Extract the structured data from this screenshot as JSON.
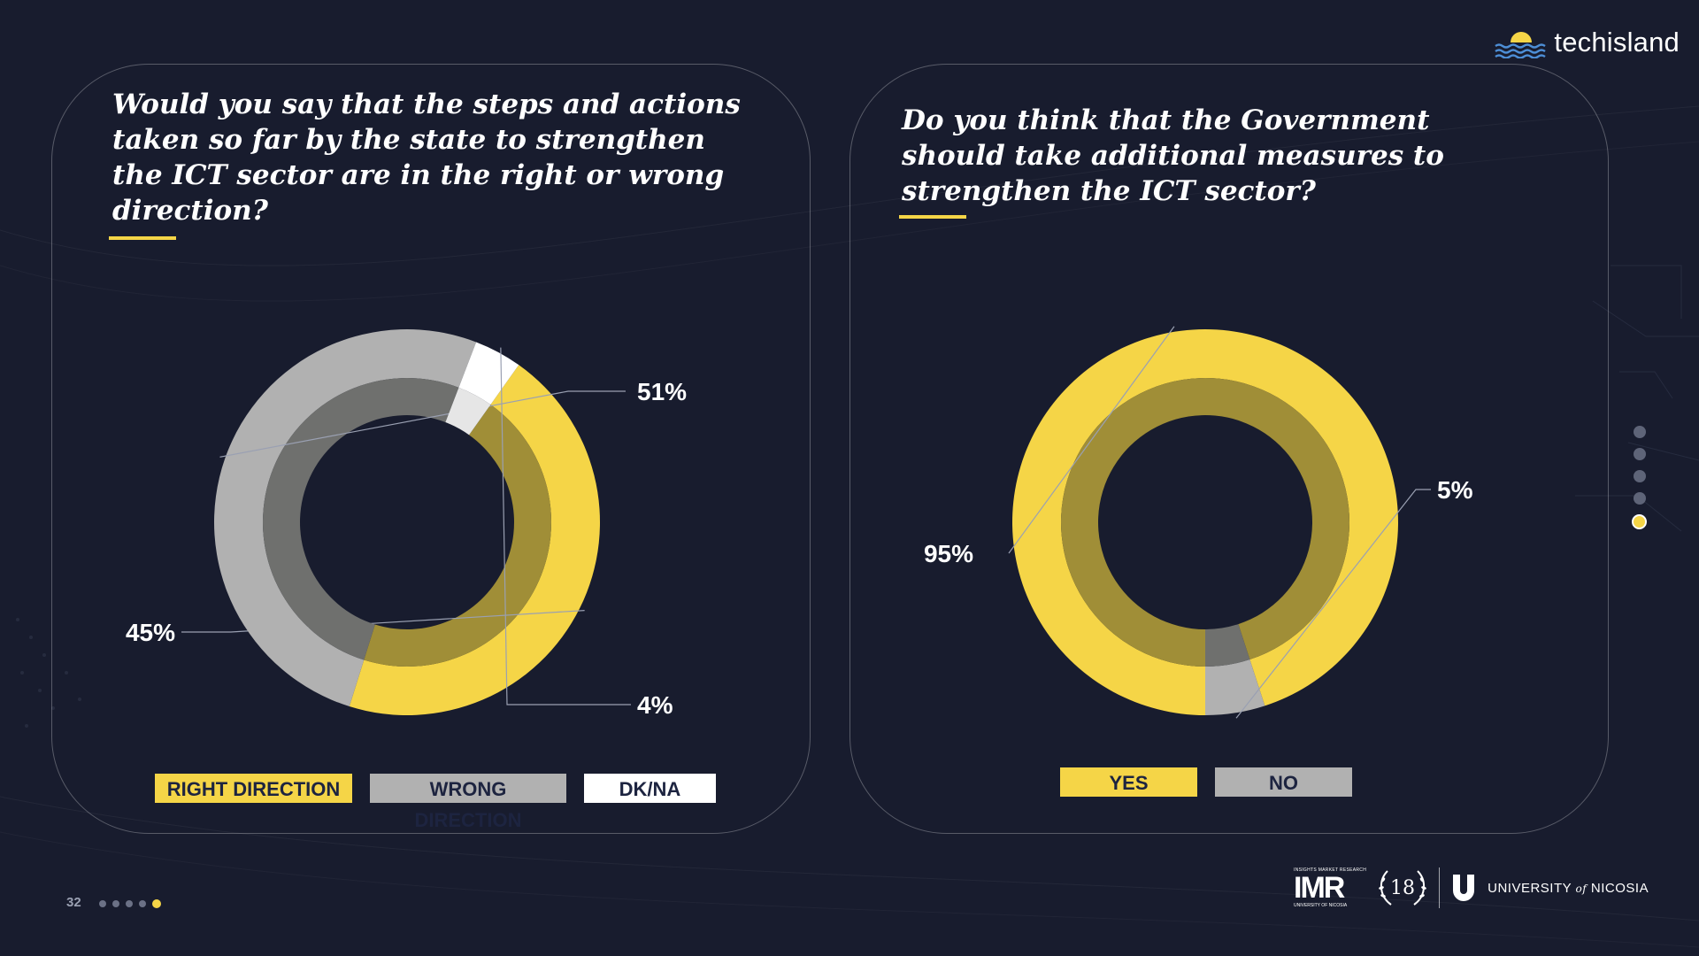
{
  "brand": {
    "name": "techisland"
  },
  "page": {
    "number": "32"
  },
  "left_panel": {
    "question": "Would you say that the steps and actions taken so far by the state to strengthen the ICT sector are in the right or wrong direction?",
    "legend": [
      {
        "label": "RIGHT DIRECTION",
        "color": "#f5d547",
        "text_color": "#1d2440"
      },
      {
        "label": "WRONG DIRECTION",
        "color": "#b1b1b1",
        "text_color": "#1d2440"
      },
      {
        "label": "DK/NA",
        "color": "#ffffff",
        "text_color": "#1d2440"
      }
    ]
  },
  "right_panel": {
    "question": "Do you think that the Government should take additional measures to strengthen the ICT sector?",
    "legend": [
      {
        "label": "YES",
        "color": "#f5d547",
        "text_color": "#1d2440"
      },
      {
        "label": "NO",
        "color": "#b1b1b1",
        "text_color": "#1d2440"
      }
    ]
  },
  "footer": {
    "imr_top": "INSIGHTS MARKET RESEARCH",
    "imr_main": "IMR",
    "imr_bottom": "UNIVERSITY OF NICOSIA",
    "anniversary": "18",
    "university_a": "UNIVERSITY",
    "university_of": "of",
    "university_b": "NICOSIA"
  },
  "chart_data": [
    {
      "type": "pie",
      "subtype": "donut",
      "categories": [
        "RIGHT DIRECTION",
        "WRONG DIRECTION",
        "DK/NA"
      ],
      "values": [
        45,
        51,
        4
      ],
      "labels": [
        "45%",
        "51%",
        "4%"
      ],
      "colors": [
        "#f5d547",
        "#b1b1b1",
        "#ffffff"
      ],
      "inner_colors": [
        "#a08e37",
        "#6f706e",
        "#e6e6e6"
      ],
      "start_angle_deg": 305.4,
      "direction": "clockwise"
    },
    {
      "type": "pie",
      "subtype": "donut",
      "categories": [
        "YES",
        "NO"
      ],
      "values": [
        95,
        5
      ],
      "labels": [
        "95%",
        "5%"
      ],
      "colors": [
        "#f5d547",
        "#b1b1b1"
      ],
      "inner_colors": [
        "#a08e37",
        "#6f706e"
      ],
      "start_angle_deg": 90,
      "direction": "clockwise"
    }
  ]
}
